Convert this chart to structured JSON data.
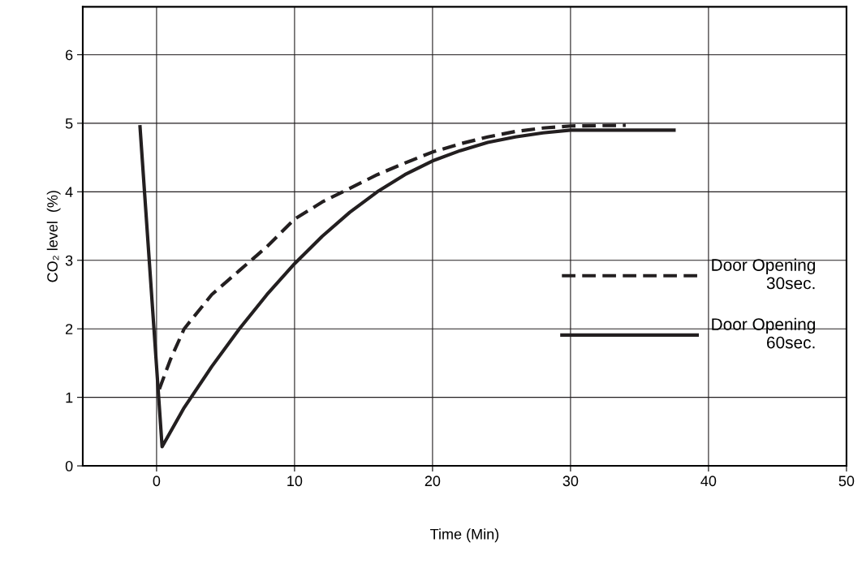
{
  "chart_data": {
    "type": "line",
    "xlabel": "Time (Min)",
    "ylabel": "CO₂ level  (%)",
    "xlim": [
      -5.35,
      50
    ],
    "ylim": [
      0,
      6.7
    ],
    "xticks": [
      0,
      10,
      20,
      30,
      40,
      50
    ],
    "yticks": [
      0,
      1,
      2,
      3,
      4,
      5,
      6
    ],
    "grid": true,
    "legend": "right",
    "marker": "none",
    "series": [
      {
        "name": "Door Opening\n30sec.",
        "color": "#231f20",
        "line_style": "dashed",
        "x": [
          0.2,
          1,
          2,
          4,
          6,
          8,
          10,
          12,
          14,
          16,
          18,
          20,
          22,
          24,
          26,
          28,
          30,
          34
        ],
        "values": [
          1.12,
          1.55,
          2.0,
          2.5,
          2.85,
          3.2,
          3.6,
          3.85,
          4.05,
          4.25,
          4.42,
          4.58,
          4.7,
          4.8,
          4.88,
          4.93,
          4.96,
          4.97
        ]
      },
      {
        "name": "Door Opening\n60sec.",
        "color": "#231f20",
        "line_style": "solid",
        "x": [
          -1.2,
          0.4,
          2,
          4,
          6,
          8,
          10,
          12,
          14,
          16,
          18,
          20,
          22,
          24,
          26,
          28,
          30,
          33,
          37.5
        ],
        "values": [
          4.95,
          0.28,
          0.85,
          1.45,
          2.0,
          2.5,
          2.95,
          3.35,
          3.7,
          4.0,
          4.25,
          4.45,
          4.6,
          4.72,
          4.8,
          4.86,
          4.9,
          4.9,
          4.9
        ]
      }
    ]
  }
}
